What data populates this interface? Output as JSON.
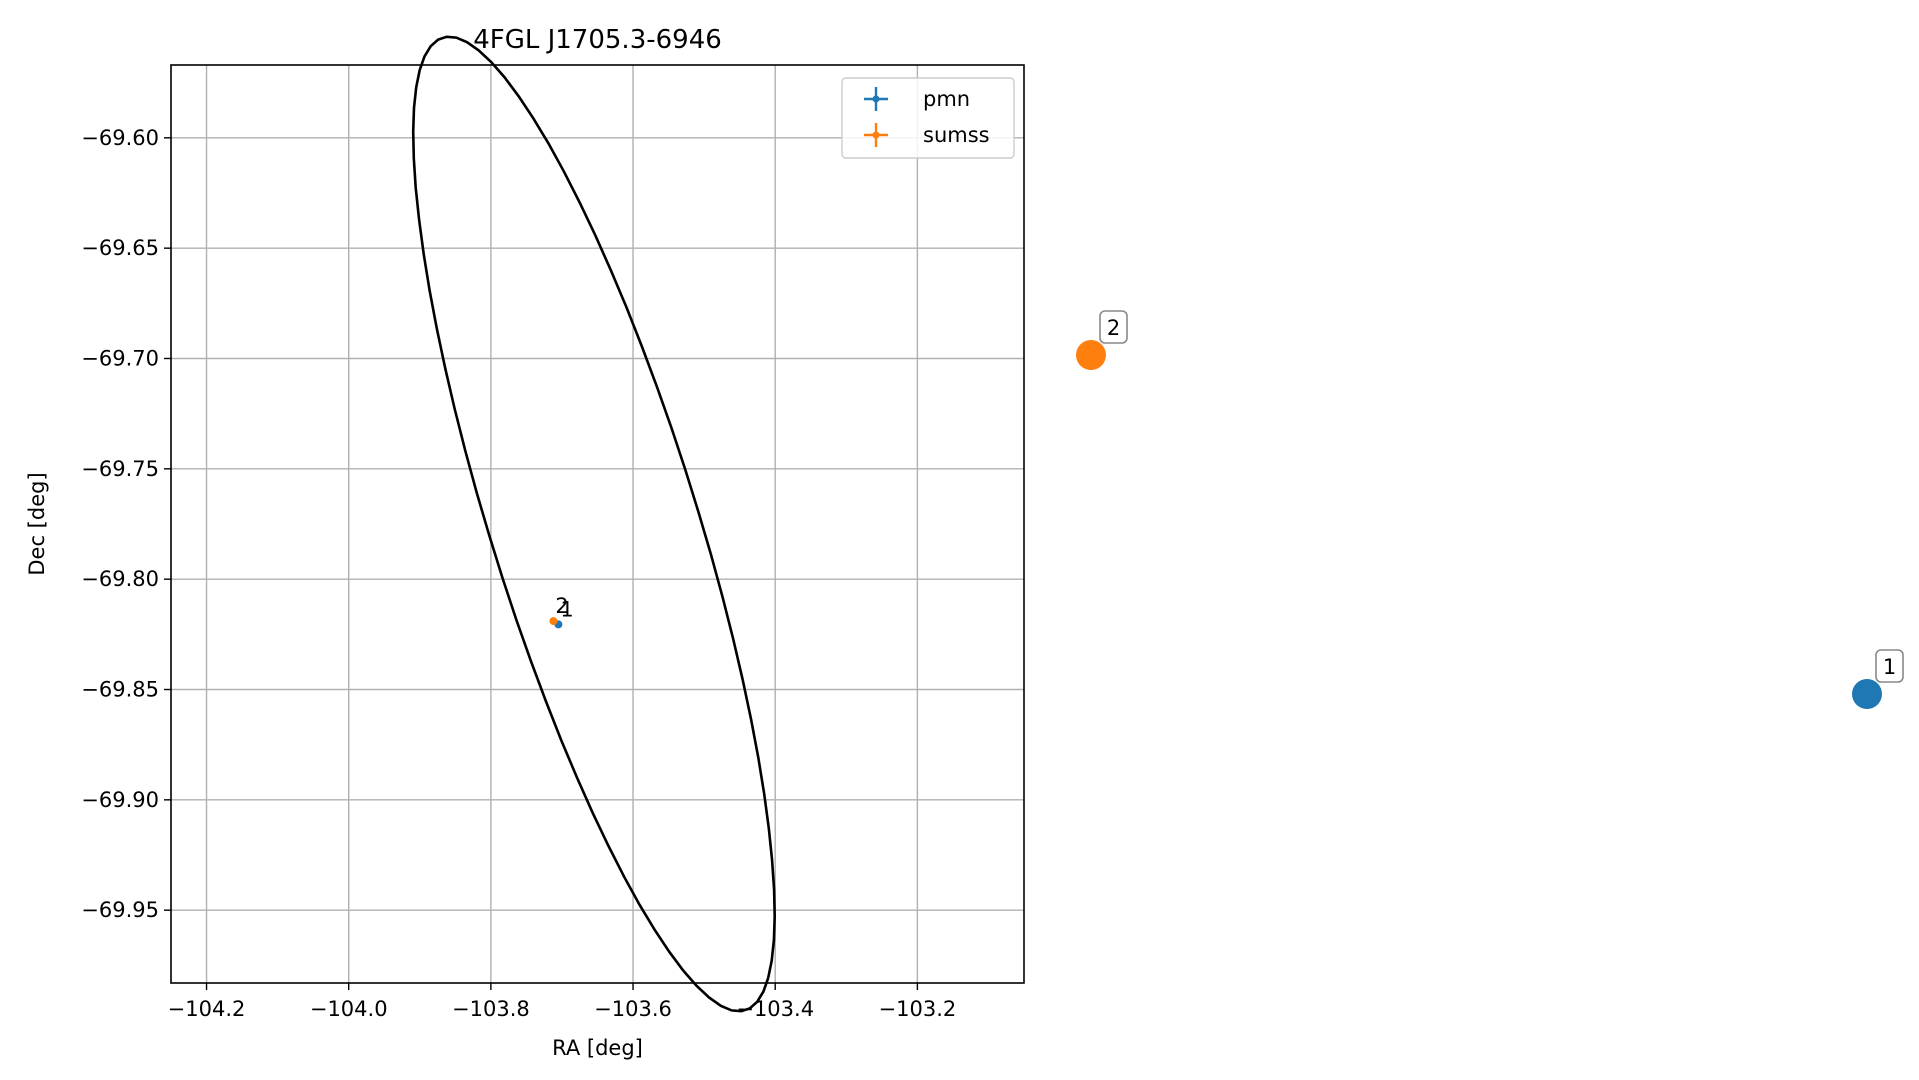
{
  "chart_data": {
    "type": "scatter",
    "title": "4FGL J1705.3-6946",
    "xlabel": "RA [deg]",
    "ylabel": "Dec [deg]",
    "xlim": [
      -104.25,
      -103.05
    ],
    "ylim": [
      -69.983,
      -69.567
    ],
    "x_ticks": [
      -104.2,
      -104.0,
      -103.8,
      -103.6,
      -103.4,
      -103.2
    ],
    "x_tick_labels": [
      "−104.2",
      "−104.0",
      "−103.8",
      "−103.6",
      "−103.4",
      "−103.2"
    ],
    "y_ticks": [
      -69.6,
      -69.65,
      -69.7,
      -69.75,
      -69.8,
      -69.85,
      -69.9,
      -69.95
    ],
    "y_tick_labels": [
      "−69.60",
      "−69.65",
      "−69.70",
      "−69.75",
      "−69.80",
      "−69.85",
      "−69.90",
      "−69.95"
    ],
    "grid": true,
    "legend_position": "top-right",
    "series": [
      {
        "name": "pmn",
        "color": "#1f77b4",
        "points": [
          {
            "x": -103.705,
            "y": -69.8205,
            "label": "1"
          }
        ]
      },
      {
        "name": "sumss",
        "color": "#ff7f0e",
        "points": [
          {
            "x": -103.712,
            "y": -69.819,
            "label": "2"
          }
        ]
      }
    ],
    "ellipse": {
      "center": [
        -103.655,
        -69.775
      ],
      "semi_major": 0.32,
      "semi_minor": 0.105,
      "angle_deg": -40,
      "color": "#000000"
    },
    "side_markers": [
      {
        "label": "2",
        "color": "#ff7f0e"
      },
      {
        "label": "1",
        "color": "#1f77b4"
      }
    ]
  }
}
